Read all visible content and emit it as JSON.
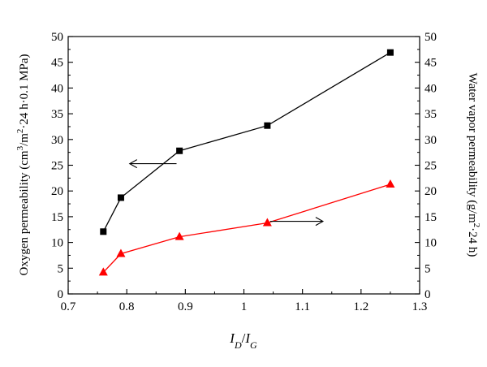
{
  "chart_data": {
    "type": "line",
    "xlim": [
      0.7,
      1.3
    ],
    "xticks": [
      "0.7",
      "0.8",
      "0.9",
      "1",
      "1.1",
      "1.2",
      "1.3"
    ],
    "ylim_left": [
      0,
      50
    ],
    "ylim_right": [
      0,
      50
    ],
    "yticks": [
      "0",
      "5",
      "10",
      "15",
      "20",
      "25",
      "30",
      "35",
      "40",
      "45",
      "50"
    ],
    "xlabel": {
      "base1": "I",
      "sub1": "D",
      "slash": "/",
      "base2": "I",
      "sub2": "G"
    },
    "ylabel_left": {
      "part1": "Oxygen permeability (cm",
      "sup1": "3",
      "part2": "/m",
      "sup2": "2",
      "part3": "·24 h·0.1 MPa)"
    },
    "ylabel_right": {
      "part1": "Water vapor permeability (g/m",
      "sup1": "2",
      "part2": "·24 h)"
    },
    "grid": false,
    "series": [
      {
        "axis": "left",
        "marker": "square",
        "color": "#000000",
        "x": [
          0.76,
          0.79,
          0.89,
          1.04,
          1.25
        ],
        "y": [
          12.1,
          18.7,
          27.8,
          32.7,
          46.9
        ]
      },
      {
        "axis": "right",
        "marker": "triangle",
        "color": "#ff0000",
        "x": [
          0.76,
          0.79,
          0.89,
          1.04,
          1.25
        ],
        "y": [
          4.2,
          7.8,
          11.1,
          13.8,
          21.3
        ]
      }
    ],
    "annotations": [
      {
        "type": "arrow",
        "direction": "left",
        "x1": 0.805,
        "x2": 0.885,
        "y": 25.3
      },
      {
        "type": "arrow",
        "direction": "right",
        "x1": 1.045,
        "x2": 1.135,
        "y": 14.1
      }
    ]
  }
}
